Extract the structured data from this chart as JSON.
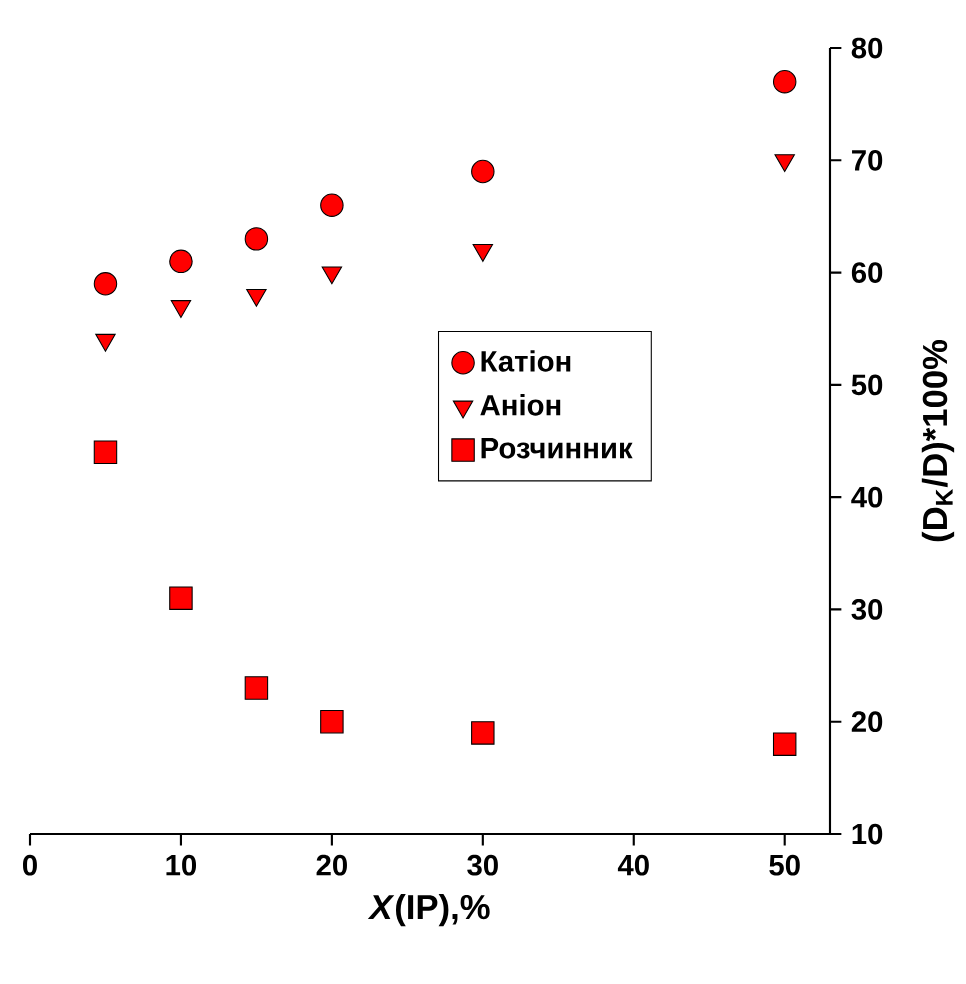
{
  "chart_data": {
    "type": "scatter",
    "xlabel": "*X*(IP),%",
    "ylabel": "(D$_{K}$/D)*100%",
    "x": [
      5,
      10,
      15,
      20,
      30,
      50
    ],
    "series": [
      {
        "name": "Катіон",
        "color": "#ff0000",
        "marker": "circle",
        "values": [
          59,
          61,
          63,
          66,
          69,
          77
        ]
      },
      {
        "name": "Аніон",
        "color": "#ff0000",
        "marker": "triangle",
        "values": [
          54,
          57,
          58,
          60,
          62,
          70
        ]
      },
      {
        "name": "Розчинник",
        "color": "#ff0000",
        "marker": "square",
        "values": [
          44,
          31,
          23,
          20,
          19,
          18
        ]
      }
    ],
    "xlim": [
      0,
      53
    ],
    "ylim": [
      10,
      80
    ],
    "xticks": [
      0,
      10,
      20,
      30,
      40,
      50
    ],
    "yticks": [
      10,
      20,
      30,
      40,
      50,
      60,
      70,
      80
    ],
    "legend": "right",
    "grid": false
  }
}
